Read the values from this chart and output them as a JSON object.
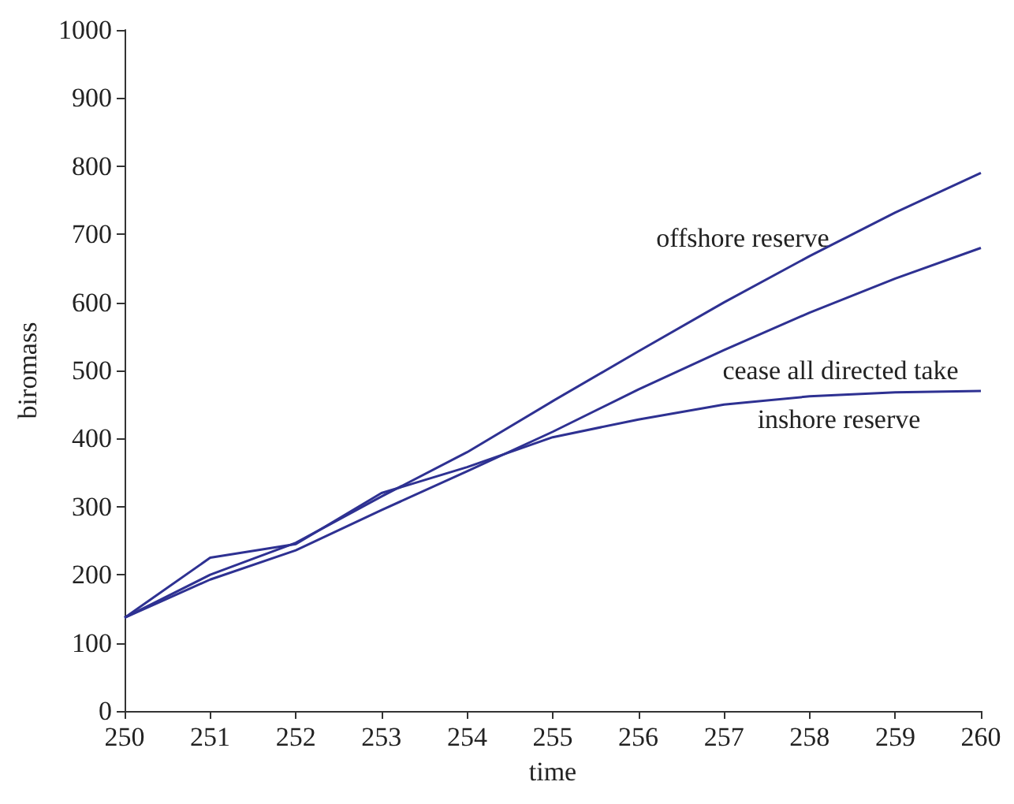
{
  "chart_data": {
    "type": "line",
    "xlabel": "time",
    "ylabel": "biromass",
    "x": [
      250,
      251,
      252,
      253,
      254,
      255,
      256,
      257,
      258,
      259,
      260
    ],
    "series": [
      {
        "color": "#2e3192",
        "values": [
          137,
          200,
          247,
          315,
          380,
          455,
          528,
          600,
          668,
          732,
          790
        ]
      },
      {
        "color": "#2e3192",
        "values": [
          137,
          193,
          236,
          295,
          352,
          410,
          472,
          530,
          585,
          635,
          680
        ]
      },
      {
        "color": "#2e3192",
        "values": [
          137,
          225,
          245,
          320,
          358,
          402,
          428,
          450,
          462,
          468,
          470
        ]
      }
    ],
    "annotations": [
      "offshore reserve",
      "cease all directed take",
      "inshore reserve"
    ],
    "xlim": [
      250,
      260
    ],
    "xticks": [
      250,
      251,
      252,
      253,
      254,
      255,
      256,
      257,
      258,
      259,
      260
    ],
    "ylim": [
      0,
      1000
    ],
    "yticks": [
      0,
      100,
      200,
      300,
      400,
      500,
      600,
      700,
      800,
      900,
      1000
    ],
    "grid": false,
    "marker": "none",
    "line_style": "solid"
  }
}
